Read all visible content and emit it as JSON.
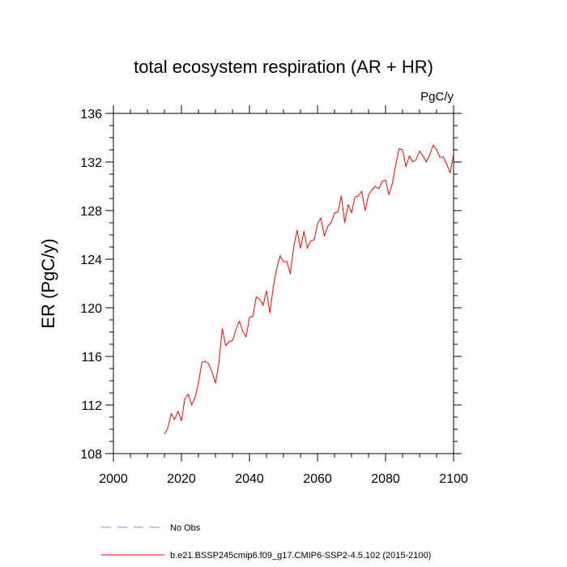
{
  "chart_data": {
    "type": "line",
    "title": "total ecosystem respiration (AR + HR)",
    "units": "PgC/y",
    "ylabel": "ER  (PgC/y)",
    "xlabel": "",
    "xlim": [
      2000,
      2100
    ],
    "ylim": [
      108,
      136
    ],
    "xticks": [
      2000,
      2020,
      2040,
      2060,
      2080,
      2100
    ],
    "yticks": [
      108,
      112,
      116,
      120,
      124,
      128,
      132,
      136
    ],
    "xtick_labels": [
      "2000",
      "2020",
      "2040",
      "2060",
      "2080",
      "2100"
    ],
    "ytick_labels": [
      "108",
      "112",
      "116",
      "120",
      "124",
      "128",
      "132",
      "136"
    ],
    "grid": false,
    "legend_position": "bottom-left",
    "series": [
      {
        "name": "No Obs",
        "color": "#8080ff",
        "style": "dashed",
        "x": [],
        "values": []
      },
      {
        "name": "b.e21.BSSP245cmip6.f09_g17.CMIP6-SSP2-4.5.102 (2015-2100)",
        "color": "#ff0000",
        "style": "solid",
        "x": [
          2015,
          2016,
          2017,
          2018,
          2019,
          2020,
          2021,
          2022,
          2023,
          2024,
          2025,
          2026,
          2027,
          2028,
          2029,
          2030,
          2031,
          2032,
          2033,
          2034,
          2035,
          2036,
          2037,
          2038,
          2039,
          2040,
          2041,
          2042,
          2043,
          2044,
          2045,
          2046,
          2047,
          2048,
          2049,
          2050,
          2051,
          2052,
          2053,
          2054,
          2055,
          2056,
          2057,
          2058,
          2059,
          2060,
          2061,
          2062,
          2063,
          2064,
          2065,
          2066,
          2067,
          2068,
          2069,
          2070,
          2071,
          2072,
          2073,
          2074,
          2075,
          2076,
          2077,
          2078,
          2079,
          2080,
          2081,
          2082,
          2083,
          2084,
          2085,
          2086,
          2087,
          2088,
          2089,
          2090,
          2091,
          2092,
          2093,
          2094,
          2095,
          2096,
          2097,
          2098,
          2099,
          2100
        ],
        "values": [
          109.6,
          110.1,
          111.3,
          110.8,
          111.5,
          110.7,
          112.5,
          112.9,
          112.0,
          112.6,
          113.8,
          115.5,
          115.6,
          115.4,
          114.7,
          113.8,
          115.4,
          118.3,
          116.9,
          117.2,
          117.3,
          118.2,
          118.9,
          118.1,
          117.6,
          119.2,
          119.3,
          120.9,
          120.7,
          120.2,
          121.4,
          119.6,
          121.7,
          123.2,
          124.3,
          123.8,
          123.8,
          122.8,
          125.0,
          126.4,
          124.9,
          126.3,
          124.9,
          125.5,
          125.6,
          126.9,
          127.4,
          125.9,
          126.7,
          127.0,
          127.8,
          127.9,
          129.2,
          127.0,
          128.5,
          127.8,
          129.1,
          129.2,
          129.6,
          128.0,
          129.3,
          129.7,
          130.0,
          129.8,
          130.4,
          130.5,
          129.3,
          130.2,
          131.8,
          133.1,
          133.0,
          131.6,
          132.5,
          132.0,
          132.2,
          132.9,
          132.5,
          132.0,
          132.6,
          133.4,
          133.0,
          132.4,
          132.4,
          131.8,
          131.1,
          132.7
        ]
      }
    ]
  }
}
